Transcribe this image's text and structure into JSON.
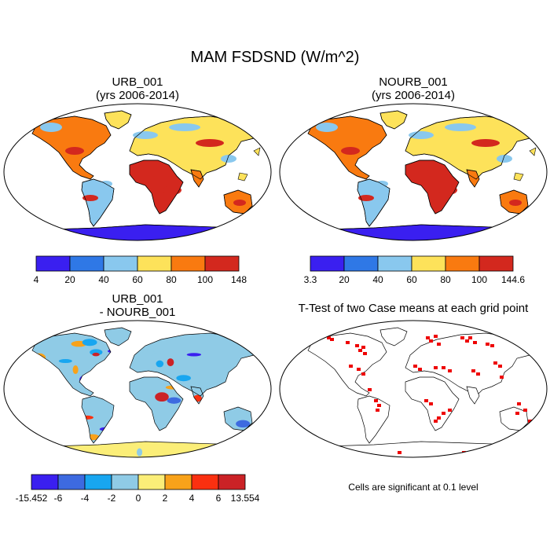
{
  "main_title": "MAM FSDSND (W/m^2)",
  "panels": {
    "urb": {
      "title_line1": "URB_001",
      "title_line2": "(yrs 2006-2014)",
      "colorbar": {
        "labels": [
          "4",
          "20",
          "40",
          "60",
          "80",
          "100",
          "148"
        ],
        "colors": [
          "#3a1ff0",
          "#2f78e6",
          "#89c8ee",
          "#fde25a",
          "#f97a10",
          "#d3281e"
        ]
      }
    },
    "nourb": {
      "title_line1": "NOURB_001",
      "title_line2": "(yrs 2006-2014)",
      "colorbar": {
        "labels": [
          "3.3",
          "20",
          "40",
          "60",
          "80",
          "100",
          "144.6"
        ],
        "colors": [
          "#3a1ff0",
          "#2f78e6",
          "#89c8ee",
          "#fde25a",
          "#f97a10",
          "#d3281e"
        ]
      }
    },
    "diff": {
      "title_line1": "URB_001",
      "title_line2": "- NOURB_001",
      "colorbar": {
        "labels": [
          "-15.452",
          "-6",
          "-4",
          "-2",
          "0",
          "2",
          "4",
          "6",
          "13.554"
        ],
        "colors": [
          "#3a1ff0",
          "#3d6ae0",
          "#18a6f0",
          "#8fcbe6",
          "#fbee78",
          "#f8a21a",
          "#fa3010",
          "#cb2226"
        ]
      }
    },
    "ttest": {
      "title": "T-Test of two Case means at each grid point",
      "note": "Cells are significant at 0.1 level",
      "color": "#ee0000"
    }
  }
}
